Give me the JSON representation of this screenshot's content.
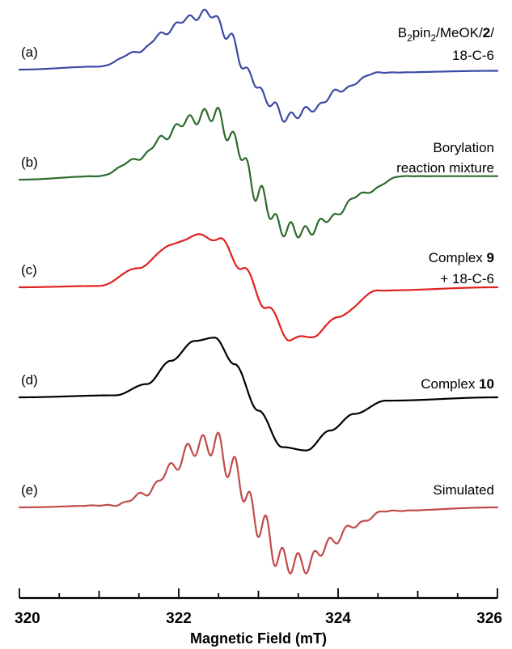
{
  "chart_data": {
    "type": "line",
    "xlabel": "Magnetic Field (mT)",
    "xlim": [
      320,
      326
    ],
    "xticks": [
      "320",
      "322",
      "324",
      "326"
    ],
    "grid": false,
    "series": [
      {
        "label": "(a)",
        "annotation": [
          [
            "B",
            ""
          ],
          [
            "2",
            "sub"
          ],
          [
            "pin",
            ""
          ],
          [
            "2",
            "sub"
          ],
          [
            "/MeOK/",
            ""
          ],
          [
            "2",
            "b"
          ],
          [
            "/",
            ""
          ],
          [
            "\n",
            ""
          ],
          [
            "18-C-6",
            ""
          ]
        ],
        "color": "#3b4ba5",
        "x": [
          320.0,
          321.0,
          321.5,
          321.8,
          322.1,
          322.4,
          322.6,
          322.9,
          323.1,
          323.35,
          323.7,
          324.0,
          324.5,
          326.0
        ],
        "y": [
          0.0,
          0.05,
          0.3,
          0.6,
          0.85,
          0.95,
          0.6,
          -0.1,
          -0.5,
          -0.8,
          -0.65,
          -0.35,
          -0.05,
          -0.02
        ]
      },
      {
        "label": "(b)",
        "annotation": [
          [
            "Borylation",
            ""
          ],
          [
            "\n",
            ""
          ],
          [
            "reaction  mixture",
            ""
          ]
        ],
        "color": "#2d6a2d",
        "x": [
          320.0,
          321.0,
          321.5,
          321.8,
          322.1,
          322.45,
          322.7,
          323.0,
          323.3,
          323.6,
          323.9,
          324.3,
          324.8,
          326.0
        ],
        "y": [
          0.0,
          0.05,
          0.3,
          0.6,
          0.85,
          0.95,
          0.55,
          -0.2,
          -0.7,
          -0.75,
          -0.55,
          -0.2,
          0.05,
          0.05
        ]
      },
      {
        "label": "(c)",
        "annotation": [
          [
            "Complex ",
            ""
          ],
          [
            "9",
            "b"
          ],
          [
            "\n",
            ""
          ],
          [
            "+ 18-C-6",
            ""
          ]
        ],
        "color": "#e02020",
        "x": [
          320.0,
          321.0,
          321.5,
          321.9,
          322.2,
          322.5,
          322.8,
          323.1,
          323.4,
          323.7,
          324.0,
          324.5,
          326.0
        ],
        "y": [
          0.0,
          0.02,
          0.3,
          0.65,
          0.8,
          0.75,
          0.3,
          -0.3,
          -0.8,
          -0.75,
          -0.45,
          -0.05,
          0.0
        ]
      },
      {
        "label": "(d)",
        "annotation": [
          [
            "Complex ",
            ""
          ],
          [
            "10",
            "b"
          ]
        ],
        "color": "#000000",
        "x": [
          320.0,
          321.2,
          321.6,
          321.9,
          322.2,
          322.45,
          322.7,
          323.0,
          323.3,
          323.6,
          323.9,
          324.2,
          324.6,
          326.0
        ],
        "y": [
          0.0,
          0.03,
          0.2,
          0.55,
          0.85,
          0.9,
          0.5,
          -0.2,
          -0.75,
          -0.8,
          -0.5,
          -0.25,
          -0.05,
          0.0
        ]
      },
      {
        "label": "(e)",
        "annotation": [
          [
            "Simulated",
            ""
          ]
        ],
        "color": "#c24a4a",
        "x": [
          320.0,
          321.2,
          321.6,
          321.9,
          322.2,
          322.45,
          322.7,
          323.0,
          323.3,
          323.6,
          323.9,
          324.2,
          324.6,
          326.0
        ],
        "y": [
          0.0,
          0.03,
          0.2,
          0.55,
          0.85,
          0.9,
          0.5,
          -0.2,
          -0.75,
          -0.8,
          -0.5,
          -0.25,
          -0.05,
          0.0
        ]
      }
    ]
  }
}
